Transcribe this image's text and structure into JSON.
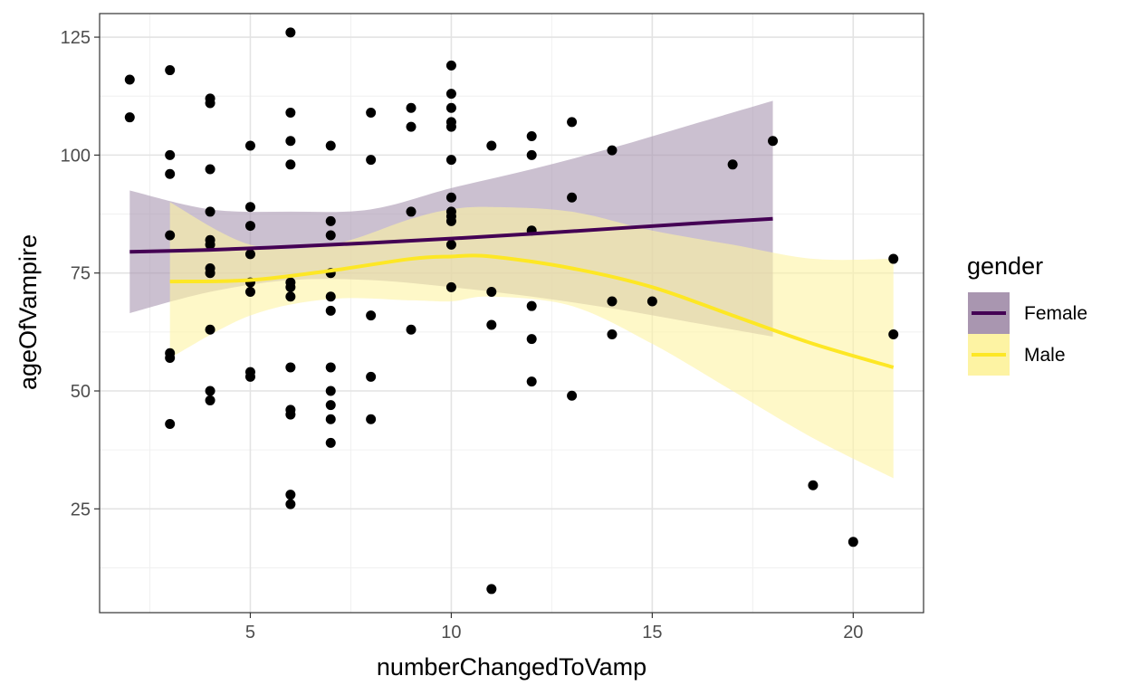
{
  "chart_data": {
    "type": "scatter",
    "title": "",
    "xlabel": "numberChangedToVamp",
    "ylabel": "ageOfVampire",
    "xlim": [
      1.25,
      21.75
    ],
    "ylim": [
      3,
      130
    ],
    "x_ticks": [
      5,
      10,
      15,
      20
    ],
    "y_ticks": [
      25,
      50,
      75,
      100,
      125
    ],
    "x_tick_labels": [
      "5",
      "10",
      "15",
      "20"
    ],
    "y_tick_labels": [
      "25",
      "50",
      "75",
      "100",
      "125"
    ],
    "grid": true,
    "legend": {
      "title": "gender",
      "position": "right",
      "entries": [
        {
          "label": "Female",
          "line_color": "#440154",
          "fill_color": "#a996b0"
        },
        {
          "label": "Male",
          "line_color": "#fde725",
          "fill_color": "#fdf3a3"
        }
      ]
    },
    "points": [
      {
        "x": 2,
        "y": 116
      },
      {
        "x": 2,
        "y": 108
      },
      {
        "x": 3,
        "y": 118
      },
      {
        "x": 3,
        "y": 100
      },
      {
        "x": 3,
        "y": 96
      },
      {
        "x": 3,
        "y": 83
      },
      {
        "x": 3,
        "y": 58
      },
      {
        "x": 3,
        "y": 57
      },
      {
        "x": 3,
        "y": 43
      },
      {
        "x": 4,
        "y": 112
      },
      {
        "x": 4,
        "y": 111
      },
      {
        "x": 4,
        "y": 97
      },
      {
        "x": 4,
        "y": 88
      },
      {
        "x": 4,
        "y": 82
      },
      {
        "x": 4,
        "y": 81
      },
      {
        "x": 4,
        "y": 76
      },
      {
        "x": 4,
        "y": 75
      },
      {
        "x": 4,
        "y": 63
      },
      {
        "x": 4,
        "y": 50
      },
      {
        "x": 4,
        "y": 48
      },
      {
        "x": 5,
        "y": 102
      },
      {
        "x": 5,
        "y": 89
      },
      {
        "x": 5,
        "y": 85
      },
      {
        "x": 5,
        "y": 79
      },
      {
        "x": 5,
        "y": 73
      },
      {
        "x": 5,
        "y": 71
      },
      {
        "x": 5,
        "y": 54
      },
      {
        "x": 5,
        "y": 53
      },
      {
        "x": 6,
        "y": 126
      },
      {
        "x": 6,
        "y": 109
      },
      {
        "x": 6,
        "y": 103
      },
      {
        "x": 6,
        "y": 98
      },
      {
        "x": 6,
        "y": 73
      },
      {
        "x": 6,
        "y": 72
      },
      {
        "x": 6,
        "y": 70
      },
      {
        "x": 6,
        "y": 55
      },
      {
        "x": 6,
        "y": 46
      },
      {
        "x": 6,
        "y": 45
      },
      {
        "x": 6,
        "y": 28
      },
      {
        "x": 6,
        "y": 26
      },
      {
        "x": 7,
        "y": 102
      },
      {
        "x": 7,
        "y": 86
      },
      {
        "x": 7,
        "y": 83
      },
      {
        "x": 7,
        "y": 75
      },
      {
        "x": 7,
        "y": 70
      },
      {
        "x": 7,
        "y": 67
      },
      {
        "x": 7,
        "y": 55
      },
      {
        "x": 7,
        "y": 50
      },
      {
        "x": 7,
        "y": 47
      },
      {
        "x": 7,
        "y": 44
      },
      {
        "x": 7,
        "y": 39
      },
      {
        "x": 8,
        "y": 109
      },
      {
        "x": 8,
        "y": 99
      },
      {
        "x": 8,
        "y": 66
      },
      {
        "x": 8,
        "y": 53
      },
      {
        "x": 8,
        "y": 44
      },
      {
        "x": 9,
        "y": 110
      },
      {
        "x": 9,
        "y": 106
      },
      {
        "x": 9,
        "y": 88
      },
      {
        "x": 9,
        "y": 63
      },
      {
        "x": 10,
        "y": 119
      },
      {
        "x": 10,
        "y": 113
      },
      {
        "x": 10,
        "y": 110
      },
      {
        "x": 10,
        "y": 107
      },
      {
        "x": 10,
        "y": 106
      },
      {
        "x": 10,
        "y": 99
      },
      {
        "x": 10,
        "y": 91
      },
      {
        "x": 10,
        "y": 88
      },
      {
        "x": 10,
        "y": 87
      },
      {
        "x": 10,
        "y": 86
      },
      {
        "x": 10,
        "y": 81
      },
      {
        "x": 10,
        "y": 72
      },
      {
        "x": 11,
        "y": 102
      },
      {
        "x": 11,
        "y": 71
      },
      {
        "x": 11,
        "y": 64
      },
      {
        "x": 11,
        "y": 8
      },
      {
        "x": 12,
        "y": 104
      },
      {
        "x": 12,
        "y": 100
      },
      {
        "x": 12,
        "y": 84
      },
      {
        "x": 12,
        "y": 68
      },
      {
        "x": 12,
        "y": 61
      },
      {
        "x": 12,
        "y": 52
      },
      {
        "x": 13,
        "y": 107
      },
      {
        "x": 13,
        "y": 91
      },
      {
        "x": 13,
        "y": 49
      },
      {
        "x": 14,
        "y": 101
      },
      {
        "x": 14,
        "y": 69
      },
      {
        "x": 14,
        "y": 62
      },
      {
        "x": 15,
        "y": 69
      },
      {
        "x": 17,
        "y": 98
      },
      {
        "x": 18,
        "y": 103
      },
      {
        "x": 19,
        "y": 30
      },
      {
        "x": 20,
        "y": 18
      },
      {
        "x": 21,
        "y": 78
      },
      {
        "x": 21,
        "y": 62
      }
    ],
    "series": [
      {
        "name": "Female",
        "line_color": "#440154",
        "ribbon_color": "#a996b0",
        "x": [
          2,
          4,
          6,
          8,
          10,
          12,
          14,
          16,
          18
        ],
        "fit": [
          79.5,
          79.9,
          80.6,
          81.4,
          82.3,
          83.3,
          84.4,
          85.5,
          86.5
        ],
        "lower": [
          66.5,
          71,
          73.5,
          73.5,
          72,
          70,
          67.5,
          64.5,
          61.5
        ],
        "upper": [
          92.5,
          88.5,
          88,
          88.5,
          93,
          97,
          101.5,
          106.5,
          111.5
        ]
      },
      {
        "name": "Male",
        "line_color": "#fde725",
        "ribbon_color": "#fdf3a3",
        "x": [
          3,
          5,
          7,
          9,
          10,
          11,
          13,
          15,
          17,
          19,
          21
        ],
        "fit": [
          73.2,
          73.5,
          75.5,
          78,
          78.5,
          78.5,
          76,
          72,
          66,
          60,
          55
        ],
        "lower": [
          57,
          66,
          69.5,
          69.2,
          69,
          70,
          68,
          60,
          50,
          40,
          31.5
        ],
        "upper": [
          90,
          81,
          81,
          86.5,
          88.5,
          89,
          88,
          84,
          81,
          78,
          78
        ]
      }
    ]
  }
}
